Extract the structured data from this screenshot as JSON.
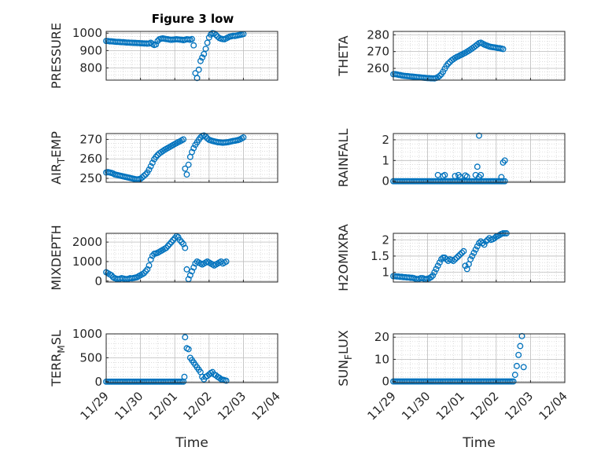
{
  "figure": {
    "title": "Figure 3 low",
    "marker_color": "#0072BD"
  },
  "chart_data": [
    {
      "type": "scatter",
      "ylabel": "PRESSURE",
      "ylim": [
        730,
        1010
      ],
      "yticks": [
        "800",
        "900",
        "1000"
      ],
      "xticks": [],
      "xlabel": "",
      "grid": true,
      "x": [
        0.0,
        0.05,
        0.1,
        0.15,
        0.2,
        0.25,
        0.3,
        0.35,
        0.4,
        0.45,
        0.5,
        0.55,
        0.6,
        0.65,
        0.7,
        0.75,
        0.8,
        0.85,
        0.9,
        0.95,
        1.0,
        1.05,
        1.1,
        1.15,
        1.2,
        1.25,
        1.3,
        1.35,
        1.4,
        1.45,
        1.5,
        1.55,
        1.6,
        1.65,
        1.7,
        1.75,
        1.8,
        1.85,
        1.9,
        1.95,
        2.0,
        2.05,
        2.1,
        2.15,
        2.2,
        2.25,
        2.3,
        2.35,
        2.4,
        2.45,
        2.5,
        2.55,
        2.6,
        2.65,
        2.7,
        2.75,
        2.8,
        2.85,
        2.9,
        2.95,
        3.0,
        3.05,
        3.1,
        3.15,
        3.2,
        3.25,
        3.3,
        3.35,
        3.4,
        3.45,
        3.5,
        3.55,
        3.6,
        3.65,
        3.7,
        3.75,
        3.8,
        3.85,
        3.9,
        3.95,
        4.0
      ],
      "y": [
        955,
        955,
        953,
        953,
        952,
        951,
        950,
        950,
        949,
        948,
        948,
        947,
        946,
        946,
        945,
        945,
        944,
        944,
        943,
        943,
        942,
        942,
        941,
        941,
        940,
        941,
        945,
        938,
        932,
        935,
        955,
        965,
        968,
        970,
        968,
        966,
        965,
        963,
        962,
        963,
        964,
        965,
        964,
        963,
        962,
        960,
        962,
        965,
        964,
        962,
        966,
        930,
        770,
        742,
        790,
        840,
        860,
        880,
        910,
        945,
        975,
        992,
        1000,
        998,
        990,
        980,
        972,
        968,
        966,
        965,
        970,
        975,
        980,
        982,
        985,
        984,
        986,
        988,
        990,
        992,
        995
      ]
    },
    {
      "type": "scatter",
      "ylabel": "THETA",
      "ylim": [
        253,
        282
      ],
      "yticks": [
        "260",
        "270",
        "280"
      ],
      "xticks": [],
      "xlabel": "",
      "grid": true,
      "x": [
        0.0,
        0.05,
        0.1,
        0.15,
        0.2,
        0.25,
        0.3,
        0.35,
        0.4,
        0.45,
        0.5,
        0.55,
        0.6,
        0.65,
        0.7,
        0.75,
        0.8,
        0.85,
        0.9,
        0.95,
        1.0,
        1.05,
        1.1,
        1.15,
        1.2,
        1.25,
        1.3,
        1.35,
        1.4,
        1.45,
        1.5,
        1.55,
        1.6,
        1.65,
        1.7,
        1.75,
        1.8,
        1.85,
        1.9,
        1.95,
        2.0,
        2.05,
        2.1,
        2.15,
        2.2,
        2.25,
        2.3,
        2.35,
        2.4,
        2.45,
        2.5,
        2.55,
        2.6,
        2.65,
        2.7,
        2.75,
        2.8,
        2.85,
        2.9,
        2.95,
        3.0,
        3.05,
        3.1,
        3.15,
        3.2
      ],
      "y": [
        256.5,
        256.6,
        256.4,
        256.2,
        256.0,
        255.8,
        255.6,
        255.5,
        255.4,
        255.3,
        255.2,
        255.1,
        255.0,
        254.9,
        254.8,
        254.7,
        254.6,
        254.5,
        254.4,
        254.3,
        254.2,
        254.2,
        254.1,
        254.1,
        254.0,
        254.3,
        254.8,
        255.5,
        256.5,
        258.0,
        259.8,
        261.5,
        262.8,
        263.8,
        264.8,
        265.5,
        266.2,
        266.8,
        267.2,
        267.8,
        268.2,
        268.8,
        269.3,
        269.9,
        270.5,
        271.2,
        271.9,
        272.6,
        273.4,
        274.2,
        275.0,
        275.3,
        274.8,
        274.2,
        273.8,
        273.4,
        273.0,
        272.8,
        272.6,
        272.5,
        272.3,
        272.1,
        272.0,
        271.8,
        271.5
      ]
    },
    {
      "type": "scatter",
      "ylabel": "AIR_TEMP",
      "ylim": [
        248,
        273
      ],
      "yticks": [
        "250",
        "260",
        "270"
      ],
      "xticks": [],
      "xlabel": "",
      "grid": true,
      "x": [
        0.0,
        0.05,
        0.1,
        0.15,
        0.2,
        0.25,
        0.3,
        0.35,
        0.4,
        0.45,
        0.5,
        0.55,
        0.6,
        0.65,
        0.7,
        0.75,
        0.8,
        0.85,
        0.9,
        0.95,
        1.0,
        1.05,
        1.1,
        1.15,
        1.2,
        1.25,
        1.3,
        1.35,
        1.4,
        1.45,
        1.5,
        1.55,
        1.6,
        1.65,
        1.7,
        1.75,
        1.8,
        1.85,
        1.9,
        1.95,
        2.0,
        2.05,
        2.1,
        2.15,
        2.2,
        2.25,
        2.3,
        2.35,
        2.4,
        2.45,
        2.5,
        2.55,
        2.6,
        2.65,
        2.7,
        2.75,
        2.8,
        2.85,
        2.9,
        2.95,
        3.0,
        3.05,
        3.1,
        3.15,
        3.2,
        3.25,
        3.3,
        3.35,
        3.4,
        3.45,
        3.5,
        3.55,
        3.6,
        3.65,
        3.7,
        3.75,
        3.8,
        3.85,
        3.9,
        3.95,
        4.0
      ],
      "y": [
        253.0,
        253.2,
        253.0,
        252.8,
        252.5,
        252.0,
        251.8,
        251.6,
        251.4,
        251.2,
        251.0,
        250.8,
        250.6,
        250.4,
        250.2,
        250.0,
        249.8,
        249.6,
        249.5,
        249.6,
        249.8,
        250.5,
        251.3,
        252.0,
        253.0,
        254.5,
        256.2,
        258.0,
        259.8,
        261.0,
        262.0,
        262.8,
        263.4,
        264.0,
        264.6,
        265.1,
        265.6,
        266.1,
        266.6,
        267.1,
        267.6,
        268.1,
        268.6,
        269.0,
        269.5,
        270.0,
        255.0,
        252.0,
        257.0,
        261.0,
        263.5,
        265.5,
        267.2,
        268.5,
        269.8,
        271.0,
        271.8,
        272.0,
        271.5,
        270.5,
        269.8,
        269.5,
        269.2,
        269.0,
        268.8,
        268.6,
        268.5,
        268.4,
        268.3,
        268.4,
        268.5,
        268.6,
        268.8,
        269.0,
        269.2,
        269.3,
        269.5,
        269.7,
        270.0,
        270.5,
        271.0
      ]
    },
    {
      "type": "scatter",
      "ylabel": "RAINFALL",
      "ylim": [
        -0.05,
        2.3
      ],
      "yticks": [
        "0",
        "1",
        "2"
      ],
      "xticks": [],
      "xlabel": "",
      "grid": true,
      "x": [
        0.0,
        0.05,
        0.1,
        0.15,
        0.2,
        0.25,
        0.3,
        0.35,
        0.4,
        0.45,
        0.5,
        0.55,
        0.6,
        0.65,
        0.7,
        0.75,
        0.8,
        0.85,
        0.9,
        0.95,
        1.0,
        1.05,
        1.1,
        1.15,
        1.2,
        1.25,
        1.3,
        1.35,
        1.4,
        1.45,
        1.5,
        1.55,
        1.6,
        1.65,
        1.7,
        1.75,
        1.8,
        1.85,
        1.9,
        1.95,
        2.0,
        2.05,
        2.1,
        2.15,
        2.2,
        2.25,
        2.3,
        2.35,
        2.4,
        2.45,
        2.5,
        2.55,
        2.6,
        2.65,
        2.7,
        2.75,
        2.8,
        2.85,
        2.9,
        2.95,
        3.0,
        3.05,
        3.1,
        3.15,
        3.2,
        3.25,
        1.3,
        1.45,
        1.5,
        1.8,
        1.9,
        1.95,
        2.1,
        2.15,
        2.4,
        2.45,
        2.5,
        2.55,
        3.15,
        3.2,
        3.25,
        2.5
      ],
      "y": [
        0,
        0,
        0,
        0,
        0,
        0,
        0,
        0,
        0,
        0,
        0,
        0,
        0,
        0,
        0,
        0,
        0,
        0,
        0,
        0,
        0,
        0,
        0,
        0,
        0,
        0,
        0,
        0,
        0,
        0,
        0,
        0,
        0,
        0,
        0,
        0,
        0,
        0,
        0,
        0,
        0,
        0,
        0,
        0,
        0,
        0,
        0,
        0,
        0,
        0,
        0,
        0,
        0,
        0,
        0,
        0,
        0,
        0,
        0,
        0,
        0,
        0,
        0,
        0,
        0,
        0,
        0.3,
        0.25,
        0.3,
        0.25,
        0.3,
        0.2,
        0.28,
        0.22,
        0.3,
        0.7,
        0.2,
        0.3,
        0.2,
        0.9,
        1.0,
        2.2
      ]
    },
    {
      "type": "scatter",
      "ylabel": "MIXDEPTH",
      "ylim": [
        -50,
        2450
      ],
      "yticks": [
        "0",
        "1000",
        "2000"
      ],
      "xticks": [],
      "xlabel": "",
      "grid": true,
      "x": [
        0.0,
        0.05,
        0.1,
        0.15,
        0.2,
        0.25,
        0.3,
        0.35,
        0.4,
        0.45,
        0.5,
        0.55,
        0.6,
        0.65,
        0.7,
        0.75,
        0.8,
        0.85,
        0.9,
        0.95,
        1.0,
        1.05,
        1.1,
        1.15,
        1.2,
        1.25,
        1.3,
        1.35,
        1.4,
        1.45,
        1.5,
        1.55,
        1.6,
        1.65,
        1.7,
        1.75,
        1.8,
        1.85,
        1.9,
        1.95,
        2.0,
        2.05,
        2.1,
        2.15,
        2.2,
        2.25,
        2.3,
        2.35,
        2.4,
        2.45,
        2.5,
        2.55,
        2.6,
        2.65,
        2.7,
        2.75,
        2.8,
        2.85,
        2.9,
        2.95,
        3.0,
        3.05,
        3.1,
        3.15,
        3.2,
        3.25,
        3.3,
        3.35,
        3.4,
        3.45,
        3.5
      ],
      "y": [
        450,
        400,
        350,
        300,
        200,
        150,
        120,
        100,
        120,
        150,
        130,
        110,
        100,
        120,
        150,
        140,
        160,
        180,
        200,
        250,
        300,
        350,
        400,
        500,
        600,
        800,
        1100,
        1300,
        1400,
        1420,
        1450,
        1500,
        1550,
        1600,
        1650,
        1700,
        1800,
        1900,
        2000,
        2100,
        2200,
        2300,
        2250,
        2100,
        2000,
        1900,
        1700,
        600,
        100,
        300,
        500,
        700,
        900,
        1000,
        950,
        900,
        850,
        900,
        950,
        1000,
        950,
        900,
        850,
        800,
        850,
        900,
        950,
        1000,
        900,
        950,
        1000
      ]
    },
    {
      "type": "scatter",
      "ylabel": "H2OMIXRA",
      "ylim": [
        0.7,
        2.2
      ],
      "yticks": [
        "1",
        "1.5",
        "2"
      ],
      "xticks": [],
      "xlabel": "",
      "grid": true,
      "x": [
        0.0,
        0.05,
        0.1,
        0.15,
        0.2,
        0.25,
        0.3,
        0.35,
        0.4,
        0.45,
        0.5,
        0.55,
        0.6,
        0.65,
        0.7,
        0.75,
        0.8,
        0.85,
        0.9,
        0.95,
        1.0,
        1.05,
        1.1,
        1.15,
        1.2,
        1.25,
        1.3,
        1.35,
        1.4,
        1.45,
        1.5,
        1.55,
        1.6,
        1.65,
        1.7,
        1.75,
        1.8,
        1.85,
        1.9,
        1.95,
        2.0,
        2.05,
        2.1,
        2.15,
        2.2,
        2.25,
        2.3,
        2.35,
        2.4,
        2.45,
        2.5,
        2.55,
        2.6,
        2.65,
        2.7,
        2.75,
        2.8,
        2.85,
        2.9,
        2.95,
        3.0,
        3.05,
        3.1,
        3.15,
        3.2,
        3.25,
        3.3
      ],
      "y": [
        0.88,
        0.88,
        0.87,
        0.87,
        0.86,
        0.86,
        0.85,
        0.85,
        0.84,
        0.84,
        0.83,
        0.83,
        0.82,
        0.8,
        0.78,
        0.8,
        0.82,
        0.82,
        0.8,
        0.78,
        0.8,
        0.82,
        0.85,
        0.9,
        1.0,
        1.1,
        1.2,
        1.3,
        1.4,
        1.45,
        1.45,
        1.4,
        1.35,
        1.4,
        1.38,
        1.35,
        1.4,
        1.45,
        1.5,
        1.55,
        1.6,
        1.65,
        1.2,
        1.1,
        1.25,
        1.4,
        1.5,
        1.6,
        1.7,
        1.8,
        1.9,
        1.95,
        1.9,
        1.85,
        1.95,
        2.0,
        2.05,
        2.0,
        2.02,
        2.05,
        2.1,
        2.12,
        2.15,
        2.18,
        2.2,
        2.2,
        2.2
      ]
    },
    {
      "type": "scatter",
      "ylabel": "TERR_MSL",
      "ylim": [
        -20,
        1000
      ],
      "yticks": [
        "0",
        "500",
        "1000"
      ],
      "xticks": [
        "11/29",
        "11/30",
        "12/01",
        "12/02",
        "12/03",
        "12/04"
      ],
      "xlabel": "Time",
      "grid": true,
      "x": [
        0.0,
        0.05,
        0.1,
        0.15,
        0.2,
        0.25,
        0.3,
        0.35,
        0.4,
        0.45,
        0.5,
        0.55,
        0.6,
        0.65,
        0.7,
        0.75,
        0.8,
        0.85,
        0.9,
        0.95,
        1.0,
        1.05,
        1.1,
        1.15,
        1.2,
        1.25,
        1.3,
        1.35,
        1.4,
        1.45,
        1.5,
        1.55,
        1.6,
        1.65,
        1.7,
        1.75,
        1.8,
        1.85,
        1.9,
        1.95,
        2.0,
        2.05,
        2.1,
        2.15,
        2.2,
        2.25,
        2.28,
        2.3,
        2.35,
        2.4,
        2.45,
        2.5,
        2.55,
        2.6,
        2.65,
        2.7,
        2.75,
        2.8,
        2.85,
        2.9,
        2.95,
        3.0,
        3.05,
        3.1,
        3.15,
        3.2,
        3.25,
        3.3,
        3.35,
        3.4,
        3.45,
        3.5
      ],
      "y": [
        0,
        0,
        0,
        0,
        0,
        0,
        0,
        0,
        0,
        0,
        0,
        0,
        0,
        0,
        0,
        0,
        0,
        0,
        0,
        0,
        0,
        0,
        0,
        0,
        0,
        0,
        0,
        0,
        0,
        0,
        0,
        0,
        0,
        0,
        0,
        0,
        0,
        0,
        0,
        0,
        0,
        0,
        0,
        0,
        0,
        0,
        100,
        930,
        700,
        680,
        500,
        450,
        400,
        350,
        300,
        250,
        200,
        100,
        50,
        100,
        120,
        150,
        180,
        200,
        150,
        130,
        100,
        80,
        50,
        40,
        30,
        20
      ]
    },
    {
      "type": "scatter",
      "ylabel": "SUN_FLUX",
      "ylim": [
        -0.5,
        21.5
      ],
      "yticks": [
        "0",
        "10",
        "20"
      ],
      "xticks": [
        "11/29",
        "11/30",
        "12/01",
        "12/02",
        "12/03",
        "12/04"
      ],
      "xlabel": "Time",
      "grid": true,
      "x": [
        0.0,
        0.05,
        0.1,
        0.15,
        0.2,
        0.25,
        0.3,
        0.35,
        0.4,
        0.45,
        0.5,
        0.55,
        0.6,
        0.65,
        0.7,
        0.75,
        0.8,
        0.85,
        0.9,
        0.95,
        1.0,
        1.05,
        1.1,
        1.15,
        1.2,
        1.25,
        1.3,
        1.35,
        1.4,
        1.45,
        1.5,
        1.55,
        1.6,
        1.65,
        1.7,
        1.75,
        1.8,
        1.85,
        1.9,
        1.95,
        2.0,
        2.05,
        2.1,
        2.15,
        2.2,
        2.25,
        2.3,
        2.35,
        2.4,
        2.45,
        2.5,
        2.55,
        2.6,
        2.65,
        2.7,
        2.75,
        2.8,
        2.85,
        2.9,
        2.95,
        3.0,
        3.05,
        3.1,
        3.15,
        3.2,
        3.25,
        3.3,
        3.35,
        3.4,
        3.45,
        3.5,
        3.55,
        3.6,
        3.65,
        3.7,
        3.75,
        3.8
      ],
      "y": [
        0,
        0,
        0,
        0,
        0,
        0,
        0,
        0,
        0,
        0,
        0,
        0,
        0,
        0,
        0,
        0,
        0,
        0,
        0,
        0,
        0,
        0,
        0,
        0,
        0,
        0,
        0,
        0,
        0,
        0,
        0,
        0,
        0,
        0,
        0,
        0,
        0,
        0,
        0,
        0,
        0,
        0,
        0,
        0,
        0,
        0,
        0,
        0,
        0,
        0,
        0,
        0,
        0,
        0,
        0,
        0,
        0,
        0,
        0,
        0,
        0,
        0,
        0,
        0,
        0,
        0,
        0,
        0,
        0,
        0,
        0,
        3,
        7,
        12,
        16,
        20.5,
        6.5
      ]
    }
  ]
}
